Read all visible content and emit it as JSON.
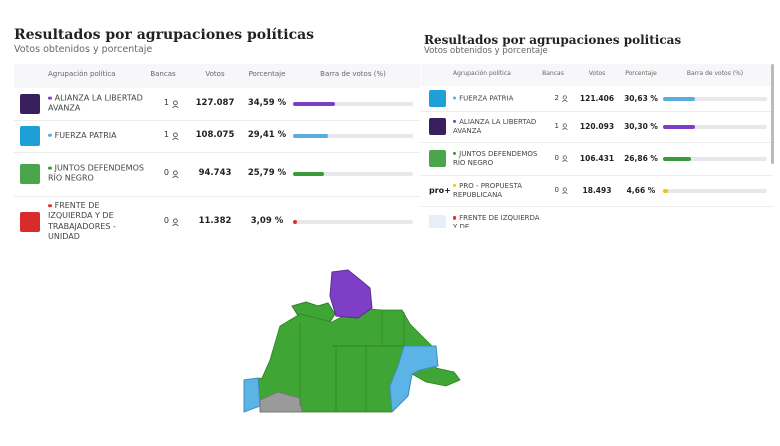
{
  "left": {
    "title": "Resultados por agrupaciones políticas",
    "subtitle": "Votos obtenidos y porcentaje",
    "headers": [
      "Agrupación política",
      "Bancas",
      "Votos",
      "Porcentaje",
      "Barra de votos (%)"
    ],
    "bar_max": 100,
    "rows": [
      {
        "name": "ALIANZA LA LIBERTAD AVANZA",
        "bancas": "1",
        "votos": "127.087",
        "porcentaje": "34,59 %",
        "bar": 34.59,
        "color": "#7b3fc4",
        "logo_color": "#3a1f5e"
      },
      {
        "name": "FUERZA PATRIA",
        "bancas": "1",
        "votos": "108.075",
        "porcentaje": "29,41 %",
        "bar": 29.41,
        "color": "#5aaedc",
        "logo_color": "#1e9fd6"
      },
      {
        "name": "JUNTOS DEFENDEMOS RÍO NEGRO",
        "bancas": "0",
        "votos": "94.743",
        "porcentaje": "25,79 %",
        "bar": 25.79,
        "color": "#3a9a3a",
        "logo_color": "#4ba64b"
      },
      {
        "name": "FRENTE DE IZQUIERDA Y DE TRABAJADORES - UNIDAD",
        "bancas": "0",
        "votos": "11.382",
        "porcentaje": "3,09 %",
        "bar": 3.09,
        "color": "#e03030",
        "logo_color": "#d92b2b"
      }
    ]
  },
  "right": {
    "title": "Resultados por agrupaciones politicas",
    "subtitle": "Votos obtenidos y porcentaje",
    "headers": [
      "Agrupación política",
      "Bancas",
      "Votos",
      "Porcentaje",
      "Barra de votos (%)"
    ],
    "bar_max": 100,
    "rows": [
      {
        "name": "FUERZA PATRIA",
        "bancas": "2",
        "votos": "121.406",
        "porcentaje": "30,63 %",
        "bar": 30.63,
        "color": "#5aaedc",
        "logo_color": "#1e9fd6"
      },
      {
        "name": "ALIANZA LA LIBERTAD AVANZA",
        "bancas": "1",
        "votos": "120.093",
        "porcentaje": "30,30 %",
        "bar": 30.3,
        "color": "#7b3fc4",
        "logo_color": "#3a1f5e"
      },
      {
        "name": "JUNTOS DEFENDEMOS RÍO NEGRO",
        "bancas": "0",
        "votos": "106.431",
        "porcentaje": "26,86 %",
        "bar": 26.86,
        "color": "#3a9a3a",
        "logo_color": "#4ba64b"
      },
      {
        "name": "PRO - PROPUESTA REPUBLICANA",
        "bancas": "0",
        "votos": "18.493",
        "porcentaje": "4,66 %",
        "bar": 4.66,
        "color": "#f2c500",
        "logo_text": "pro+"
      },
      {
        "name": "FRENTE DE IZQUIERDA Y DE",
        "color": "#e03030",
        "logo_color": "#e6eef8"
      }
    ]
  }
}
